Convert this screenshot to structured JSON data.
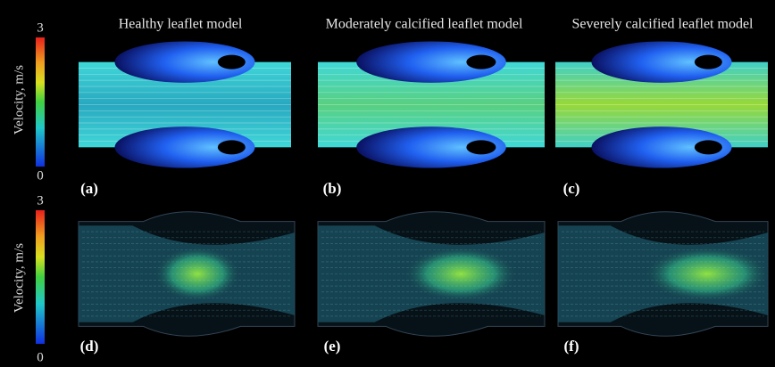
{
  "colorbars": [
    {
      "label": "Velocity, m/s",
      "max": "3",
      "min": "0"
    },
    {
      "label": "Velocity, m/s",
      "max": "3",
      "min": "0"
    }
  ],
  "panels": [
    {
      "title": "Healthy leaflet model",
      "label": "(a)"
    },
    {
      "title": "Moderately calcified leaflet model",
      "label": "(b)"
    },
    {
      "title": "Severely calcified leaflet  model",
      "label": "(c)"
    },
    {
      "label": "(d)"
    },
    {
      "label": "(e)"
    },
    {
      "label": "(f)"
    }
  ]
}
